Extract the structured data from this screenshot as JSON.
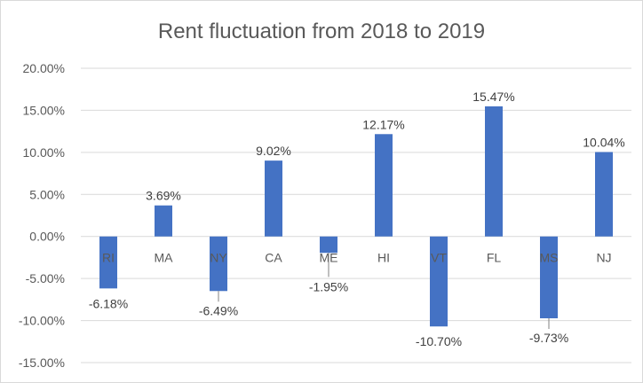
{
  "chart_data": {
    "type": "bar",
    "title": "Rent fluctuation from 2018 to 2019",
    "xlabel": "",
    "ylabel": "",
    "categories": [
      "RI",
      "MA",
      "NY",
      "CA",
      "ME",
      "HI",
      "VT",
      "FL",
      "MS",
      "NJ"
    ],
    "values": [
      -6.18,
      3.69,
      -6.49,
      9.02,
      -1.95,
      12.17,
      -10.7,
      15.47,
      -9.73,
      10.04
    ],
    "value_labels": [
      "-6.18%",
      "3.69%",
      "-6.49%",
      "9.02%",
      "-1.95%",
      "12.17%",
      "-10.70%",
      "15.47%",
      "-9.73%",
      "10.04%"
    ],
    "y_ticks": [
      20,
      15,
      10,
      5,
      0,
      -5,
      -10,
      -15
    ],
    "y_tick_labels": [
      "20.00%",
      "15.00%",
      "10.00%",
      "5.00%",
      "0.00%",
      "-5.00%",
      "-10.00%",
      "-15.00%"
    ],
    "ylim": [
      -15,
      20
    ],
    "grid": true,
    "legend": "none",
    "colors": {
      "bar": "#4472C4",
      "grid": "#d9d9d9",
      "text": "#595959",
      "leader": "#808080"
    }
  }
}
